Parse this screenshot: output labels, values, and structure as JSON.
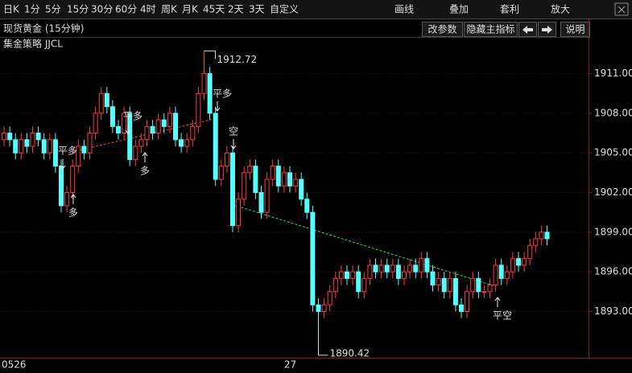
{
  "toolbar": {
    "items": [
      "日K",
      "1分",
      "5分",
      "15分",
      "30分",
      "60分",
      "4时",
      "周K",
      "月K",
      "45天",
      "2天",
      "3天",
      "自定义",
      "画线",
      "叠加",
      "套利",
      "放大"
    ],
    "active": "15分"
  },
  "header": {
    "title": "现货黄金 (15分钟)",
    "buttons": [
      "改参数",
      "隐藏主指标",
      "说明"
    ],
    "indicator": "集金策略 JJCL"
  },
  "chart_data": {
    "type": "candlestick",
    "categories": [
      "0526",
      null,
      null,
      null,
      null,
      null,
      null,
      null,
      null,
      null,
      null,
      null,
      null,
      null,
      null,
      null,
      null,
      null,
      null,
      null,
      null,
      null,
      null,
      null,
      null,
      null,
      null,
      null,
      null,
      null,
      null,
      null,
      null,
      null,
      null,
      null,
      null,
      null,
      null,
      null,
      null,
      null,
      null,
      null,
      null,
      null,
      null,
      null,
      null,
      "27",
      null,
      null,
      null,
      null,
      null,
      null,
      null,
      null,
      null,
      null,
      null,
      null,
      null,
      null,
      null,
      null,
      null,
      null,
      null,
      null,
      null,
      null,
      null,
      null,
      null,
      null,
      null,
      null,
      null,
      null,
      null,
      null,
      null,
      null,
      null,
      null,
      null,
      null,
      null,
      null,
      null,
      null,
      null,
      null,
      null,
      null
    ],
    "up_color": "#ff3c3c",
    "down_color": "#54ffff",
    "open": [
      1906,
      1906.5,
      1906,
      1905,
      1906,
      1905.5,
      1906.5,
      1906,
      1905,
      1906,
      1904,
      1901,
      1902,
      1904,
      1905.5,
      1905,
      1906.5,
      1908,
      1909.5,
      1908.5,
      1907,
      1906.5,
      1908,
      1904.5,
      1905.5,
      1906,
      1907,
      1906.5,
      1907.5,
      1907,
      1908,
      1906,
      1905.5,
      1906,
      1907,
      1909.5,
      1911,
      1908,
      1903,
      1904,
      1905,
      1899.5,
      1901.5,
      1903.5,
      1904,
      1902,
      1900.5,
      1903,
      1904,
      1902.5,
      1903.5,
      1902.5,
      1903,
      1901.5,
      1900.5,
      1893.5,
      1893,
      1893.5,
      1894.5,
      1895.5,
      1896,
      1895.5,
      1896,
      1894.5,
      1895.5,
      1896.5,
      1896,
      1896.5,
      1896,
      1896.5,
      1895.5,
      1896,
      1896.5,
      1896,
      1897,
      1896,
      1895,
      1895.5,
      1894.5,
      1895.5,
      1893.5,
      1893,
      1894.5,
      1895.5,
      1894.5,
      1894.5,
      1895,
      1896.5,
      1895.5,
      1896,
      1897,
      1896.5,
      1897,
      1898,
      1898.5,
      1899
    ],
    "high": [
      1907,
      1907,
      1906.5,
      1906.5,
      1906.5,
      1907,
      1907,
      1906.5,
      1906.5,
      1906.5,
      1904.5,
      1902.5,
      1904.5,
      1906,
      1906,
      1907,
      1908.5,
      1910,
      1910,
      1909,
      1907.5,
      1908.5,
      1908.5,
      1906,
      1906.5,
      1907.5,
      1907.5,
      1908,
      1908,
      1908.5,
      1908.5,
      1906.5,
      1906.5,
      1907.5,
      1910,
      1912.72,
      1911.5,
      1908.5,
      1904.5,
      1905.5,
      1905.5,
      1902,
      1904,
      1904.5,
      1904.5,
      1902.5,
      1903.5,
      1904.5,
      1904.5,
      1904,
      1904,
      1903.5,
      1903.5,
      1902,
      1901,
      1894,
      1894,
      1895,
      1896,
      1896.5,
      1896.5,
      1896.5,
      1896.5,
      1896,
      1897,
      1897,
      1897,
      1897,
      1897,
      1897,
      1896.5,
      1897,
      1897,
      1897.5,
      1897.5,
      1896.5,
      1896,
      1896,
      1896,
      1896,
      1894,
      1895,
      1896,
      1896,
      1895,
      1895.5,
      1897,
      1897,
      1896.5,
      1897.5,
      1897.5,
      1897.5,
      1898.5,
      1899,
      1899.5,
      1899.5
    ],
    "low": [
      1905.5,
      1905.5,
      1904.5,
      1904.5,
      1905,
      1905,
      1905.5,
      1904.5,
      1904.5,
      1903.5,
      1900.5,
      1900.5,
      1901.5,
      1903.5,
      1904.5,
      1904.5,
      1906,
      1907.5,
      1908,
      1906.5,
      1906,
      1906,
      1904,
      1904,
      1905,
      1905.5,
      1906,
      1906,
      1906.5,
      1906.5,
      1905.5,
      1905,
      1905,
      1905.5,
      1906.5,
      1909,
      1907.5,
      1902.5,
      1902.5,
      1903.5,
      1899,
      1899,
      1901,
      1903,
      1901.5,
      1900,
      1900,
      1902.5,
      1902,
      1902,
      1902,
      1902,
      1901,
      1900,
      1893,
      1890.42,
      1892.5,
      1893,
      1894,
      1895,
      1895,
      1895,
      1894,
      1894,
      1895,
      1895.5,
      1895.5,
      1895.5,
      1895.5,
      1895,
      1895,
      1895.5,
      1895.5,
      1895.5,
      1895.5,
      1894.5,
      1894.5,
      1894,
      1894,
      1893,
      1892.5,
      1892.5,
      1894,
      1894,
      1894,
      1894,
      1894.5,
      1895,
      1895,
      1895.5,
      1896,
      1896,
      1896.5,
      1897.5,
      1898,
      1898
    ],
    "close": [
      1906.5,
      1906,
      1905,
      1906,
      1905.5,
      1906.5,
      1906,
      1905,
      1906,
      1904,
      1901,
      1902,
      1904,
      1905.5,
      1905,
      1906.5,
      1908,
      1909.5,
      1908.5,
      1907,
      1906.5,
      1908,
      1904.5,
      1905.5,
      1906,
      1907,
      1906.5,
      1907.5,
      1907,
      1908,
      1906,
      1905.5,
      1906,
      1907,
      1909.5,
      1911,
      1908,
      1903,
      1904,
      1905,
      1899.5,
      1901.5,
      1903.5,
      1904,
      1902,
      1900.5,
      1903,
      1904,
      1902.5,
      1903.5,
      1902.5,
      1903,
      1901.5,
      1900.5,
      1893.5,
      1893,
      1893.5,
      1894.5,
      1895.5,
      1896,
      1895.5,
      1896,
      1894.5,
      1895.5,
      1896.5,
      1896,
      1896.5,
      1896,
      1896.5,
      1895.5,
      1896,
      1896.5,
      1896,
      1897,
      1896,
      1895,
      1895.5,
      1894.5,
      1895.5,
      1893.5,
      1893,
      1894.5,
      1895.5,
      1894.5,
      1894.5,
      1895,
      1896.5,
      1895.5,
      1896,
      1897,
      1896.5,
      1897,
      1898,
      1898.5,
      1899,
      1898.5
    ],
    "ylim": [
      1889.5,
      1912.8
    ],
    "yticks": [
      {
        "value": 1893,
        "label": "1893.00"
      },
      {
        "value": 1896,
        "label": "1896.00"
      },
      {
        "value": 1899,
        "label": "1899.00"
      },
      {
        "value": 1902,
        "label": "1902.00"
      },
      {
        "value": 1905,
        "label": "1905.00"
      },
      {
        "value": 1908,
        "label": "1908.00"
      },
      {
        "value": 1911,
        "label": "1911.00"
      }
    ],
    "grid": true,
    "max_label": 1912.72,
    "min_label": 1890.42,
    "signals": [
      {
        "label": "平多",
        "color": "#3cdc3c"
      },
      {
        "label": "多",
        "color": "#ff4040"
      },
      {
        "label": "平多",
        "color": "#3cdc3c"
      },
      {
        "label": "多",
        "color": "#ff4040"
      },
      {
        "label": "平多",
        "color": "#3cdc3c"
      },
      {
        "label": "空",
        "color": "#3cdc3c"
      },
      {
        "label": "平空",
        "color": "#ff4040"
      }
    ]
  }
}
